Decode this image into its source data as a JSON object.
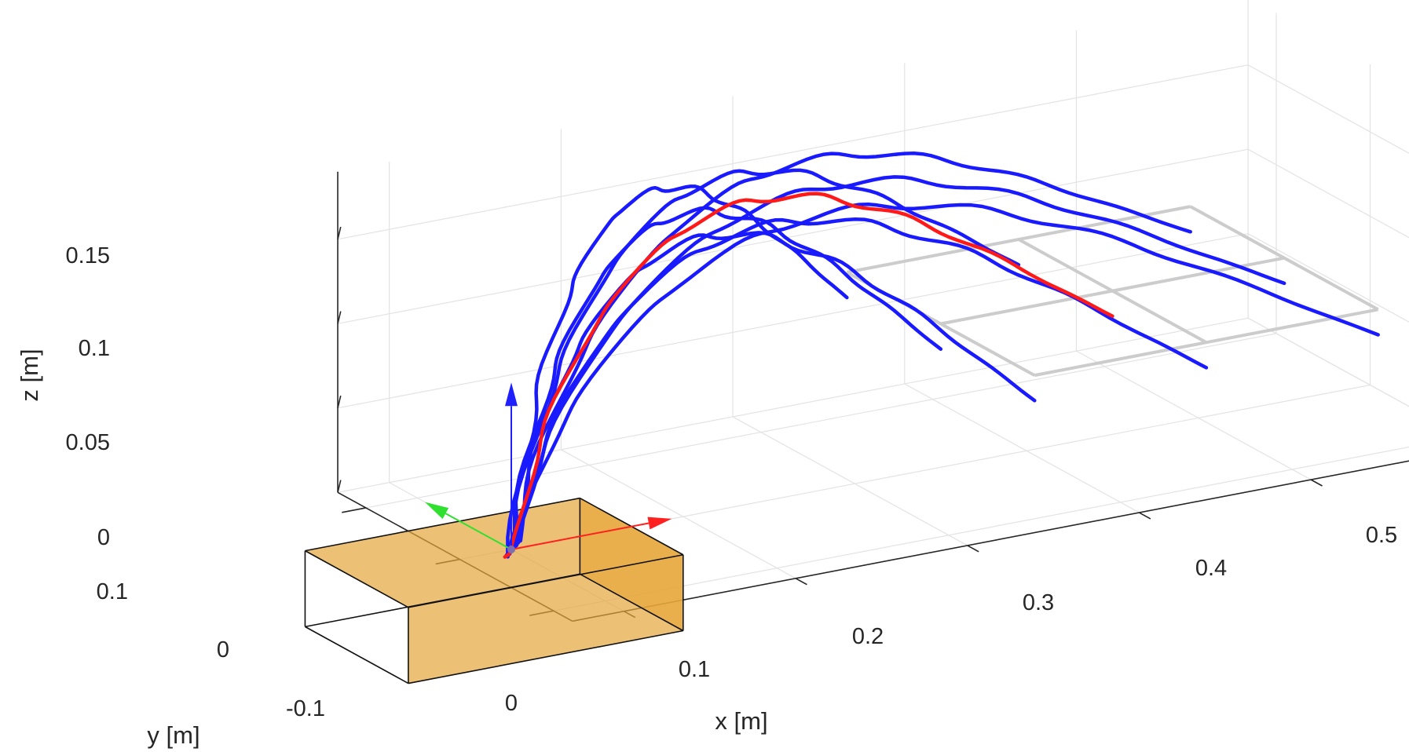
{
  "chart_data": {
    "type": "line3d",
    "title": "",
    "xlabel": "x [m]",
    "ylabel": "y [m]",
    "zlabel": "z [m]",
    "xlim": [
      -0.03,
      0.5
    ],
    "ylim": [
      -0.12,
      0.13
    ],
    "zlim": [
      0,
      0.19
    ],
    "xticks": [
      "0",
      "0.1",
      "0.2",
      "0.3",
      "0.4",
      "0.5"
    ],
    "yticks": [
      "-0.1",
      "0",
      "0.1"
    ],
    "zticks": [
      "0",
      "0.05",
      "0.1",
      "0.15"
    ],
    "grid": true,
    "box": {
      "x": [
        -0.09,
        0.07
      ],
      "y": [
        -0.055,
        0.055
      ],
      "z": [
        -0.045,
        0
      ],
      "color": "#e6a63a"
    },
    "goal_grid": {
      "x": [
        0.25,
        0.35,
        0.45
      ],
      "y": [
        -0.1,
        0,
        0.1
      ],
      "z": 0.085,
      "color": "#cccccc"
    },
    "frame_axes": [
      {
        "name": "x-axis",
        "color": "#ff2020",
        "to": [
          0.08,
          0,
          0
        ]
      },
      {
        "name": "y-axis",
        "color": "#30e030",
        "to": [
          0,
          0.07,
          0
        ]
      },
      {
        "name": "z-axis",
        "color": "#2020ff",
        "to": [
          0,
          0,
          0.085
        ]
      }
    ],
    "start": [
      0,
      0,
      0
    ],
    "highlight_target": [
      0.35,
      0,
      0.085
    ],
    "series_colors": {
      "highlight": "#ff1a1a",
      "other": "#1a1aff"
    }
  }
}
